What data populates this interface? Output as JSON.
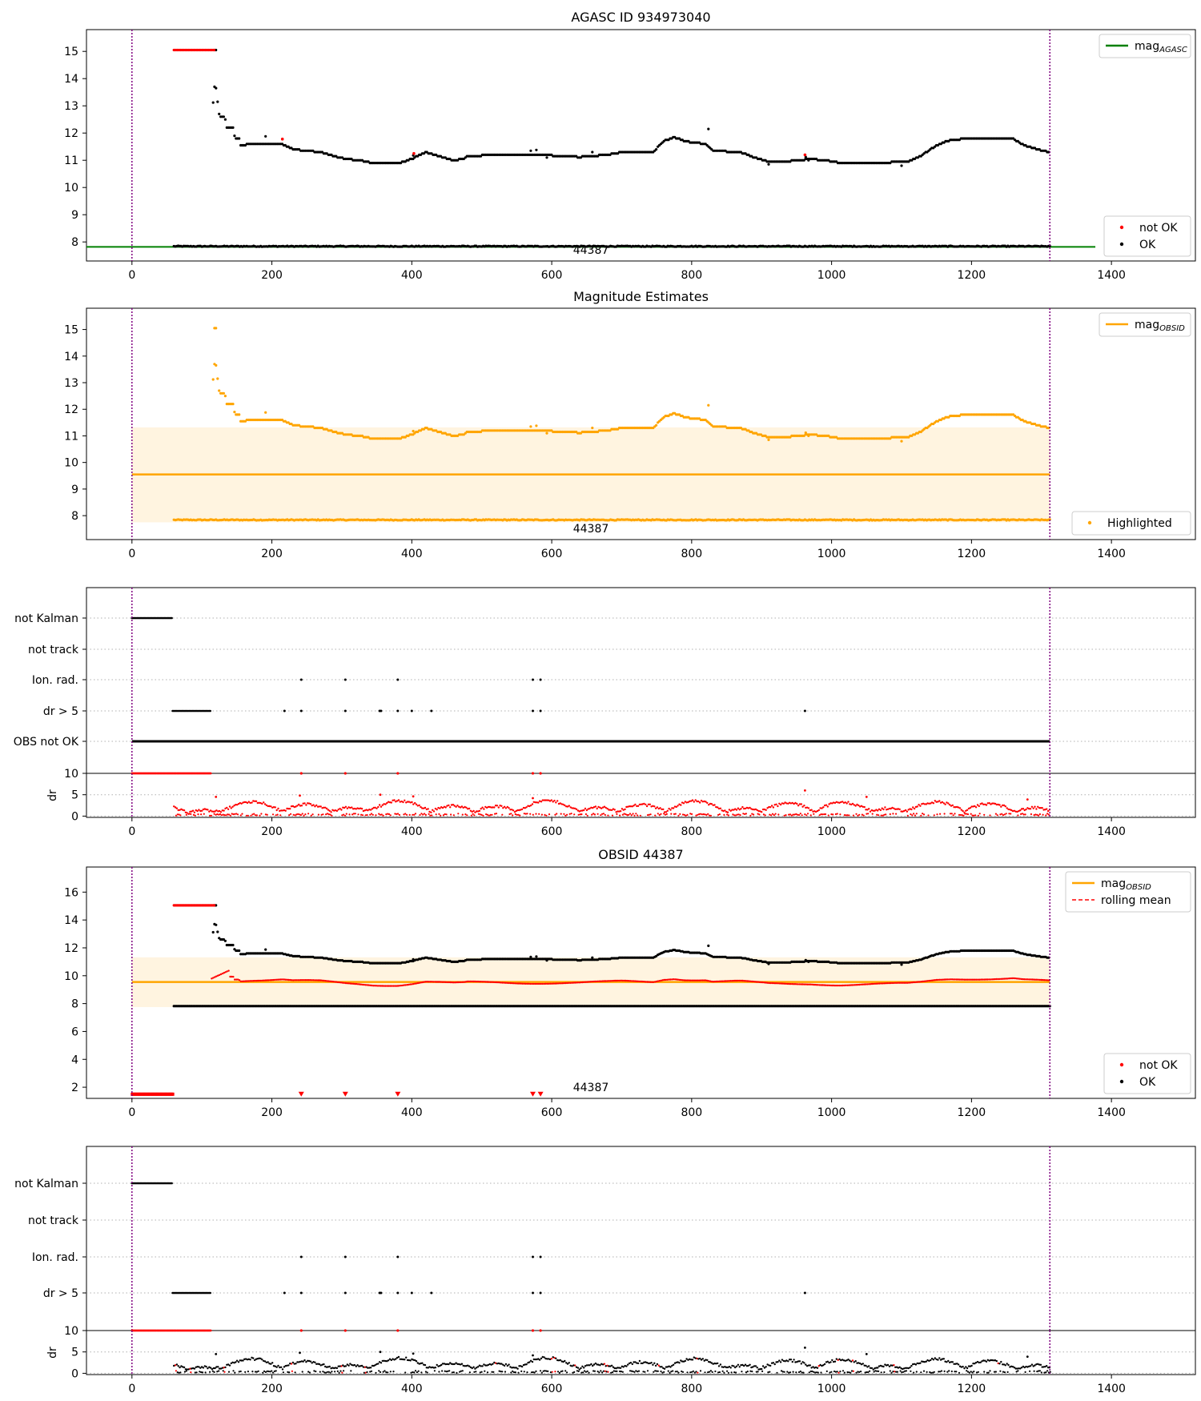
{
  "chart_data": [
    {
      "type": "scatter",
      "title": "AGASC ID 934973040",
      "xlim": [
        -65,
        1520
      ],
      "ylim": [
        7.3,
        15.8
      ],
      "x_ticks": [
        0,
        200,
        400,
        600,
        800,
        1000,
        1200,
        1400
      ],
      "y_ticks": [
        8,
        9,
        10,
        11,
        12,
        13,
        14,
        15
      ],
      "obsid_boundaries": [
        0,
        1312
      ],
      "obsid_label": {
        "text": "44387",
        "x": 656
      },
      "mag_agasc": 7.82,
      "mag_agasc_x": [
        -65,
        1377
      ],
      "legend_upper": {
        "placement": "top-right",
        "entries": [
          {
            "label": "mag",
            "sub": "AGASC",
            "color": "#008000"
          }
        ]
      },
      "legend_lower": {
        "placement": "bottom-right",
        "entries": [
          {
            "label": "not OK",
            "color": "#ff0000"
          },
          {
            "label": "OK",
            "color": "#000000"
          }
        ]
      }
    },
    {
      "type": "scatter",
      "title": "Magnitude Estimates",
      "xlim": [
        -65,
        1520
      ],
      "ylim": [
        7.1,
        15.8
      ],
      "x_ticks": [
        0,
        200,
        400,
        600,
        800,
        1000,
        1200,
        1400
      ],
      "y_ticks": [
        8,
        9,
        10,
        11,
        12,
        13,
        14,
        15
      ],
      "mag_obsid": 9.55,
      "mag_band": [
        7.75,
        11.32
      ],
      "obsid_label": {
        "text": "44387",
        "x": 656
      },
      "legend_upper": {
        "placement": "top-right",
        "entries": [
          {
            "label": "mag",
            "sub": "OBSID",
            "color": "#ffa500"
          }
        ]
      },
      "legend_lower": {
        "placement": "bottom-right",
        "entries": [
          {
            "label": "Highlighted",
            "color": "#ffa500"
          }
        ]
      }
    },
    {
      "type": "scatter",
      "title": "",
      "flag_labels": [
        "not Kalman",
        "not track",
        "Ion. rad.",
        "dr > 5",
        "OBS not OK"
      ],
      "dr_ylabel": "dr",
      "dr_ylim": [
        -0.3,
        10
      ],
      "dr_ticks": [
        0,
        5,
        10
      ],
      "x_ticks": [
        0,
        200,
        400,
        600,
        800,
        1000,
        1200,
        1400
      ]
    },
    {
      "type": "scatter",
      "title": "OBSID 44387",
      "xlim": [
        -65,
        1520
      ],
      "ylim": [
        1.2,
        17.8
      ],
      "x_ticks": [
        0,
        200,
        400,
        600,
        800,
        1000,
        1200,
        1400
      ],
      "y_ticks": [
        2,
        4,
        6,
        8,
        10,
        12,
        14,
        16
      ],
      "mag_obsid": 9.55,
      "mag_band": [
        7.75,
        11.32
      ],
      "obsid_label": {
        "text": "44387",
        "x": 656
      },
      "legend_upper": {
        "placement": "top-right",
        "entries": [
          {
            "label": "mag",
            "sub": "OBSID",
            "color": "#ffa500"
          },
          {
            "label": "rolling mean",
            "color": "#ff0000",
            "dashed": true
          }
        ]
      },
      "legend_lower": {
        "placement": "bottom-right",
        "entries": [
          {
            "label": "not OK",
            "color": "#ff0000"
          },
          {
            "label": "OK",
            "color": "#000000"
          }
        ]
      }
    },
    {
      "type": "scatter",
      "title": "",
      "flag_labels": [
        "not Kalman",
        "not track",
        "Ion. rad.",
        "dr > 5"
      ],
      "dr_ylabel": "dr",
      "dr_ylim": [
        -0.3,
        10
      ],
      "dr_ticks": [
        0,
        5,
        10
      ],
      "x_ticks": [
        0,
        200,
        400,
        600,
        800,
        1000,
        1200,
        1400
      ]
    }
  ]
}
